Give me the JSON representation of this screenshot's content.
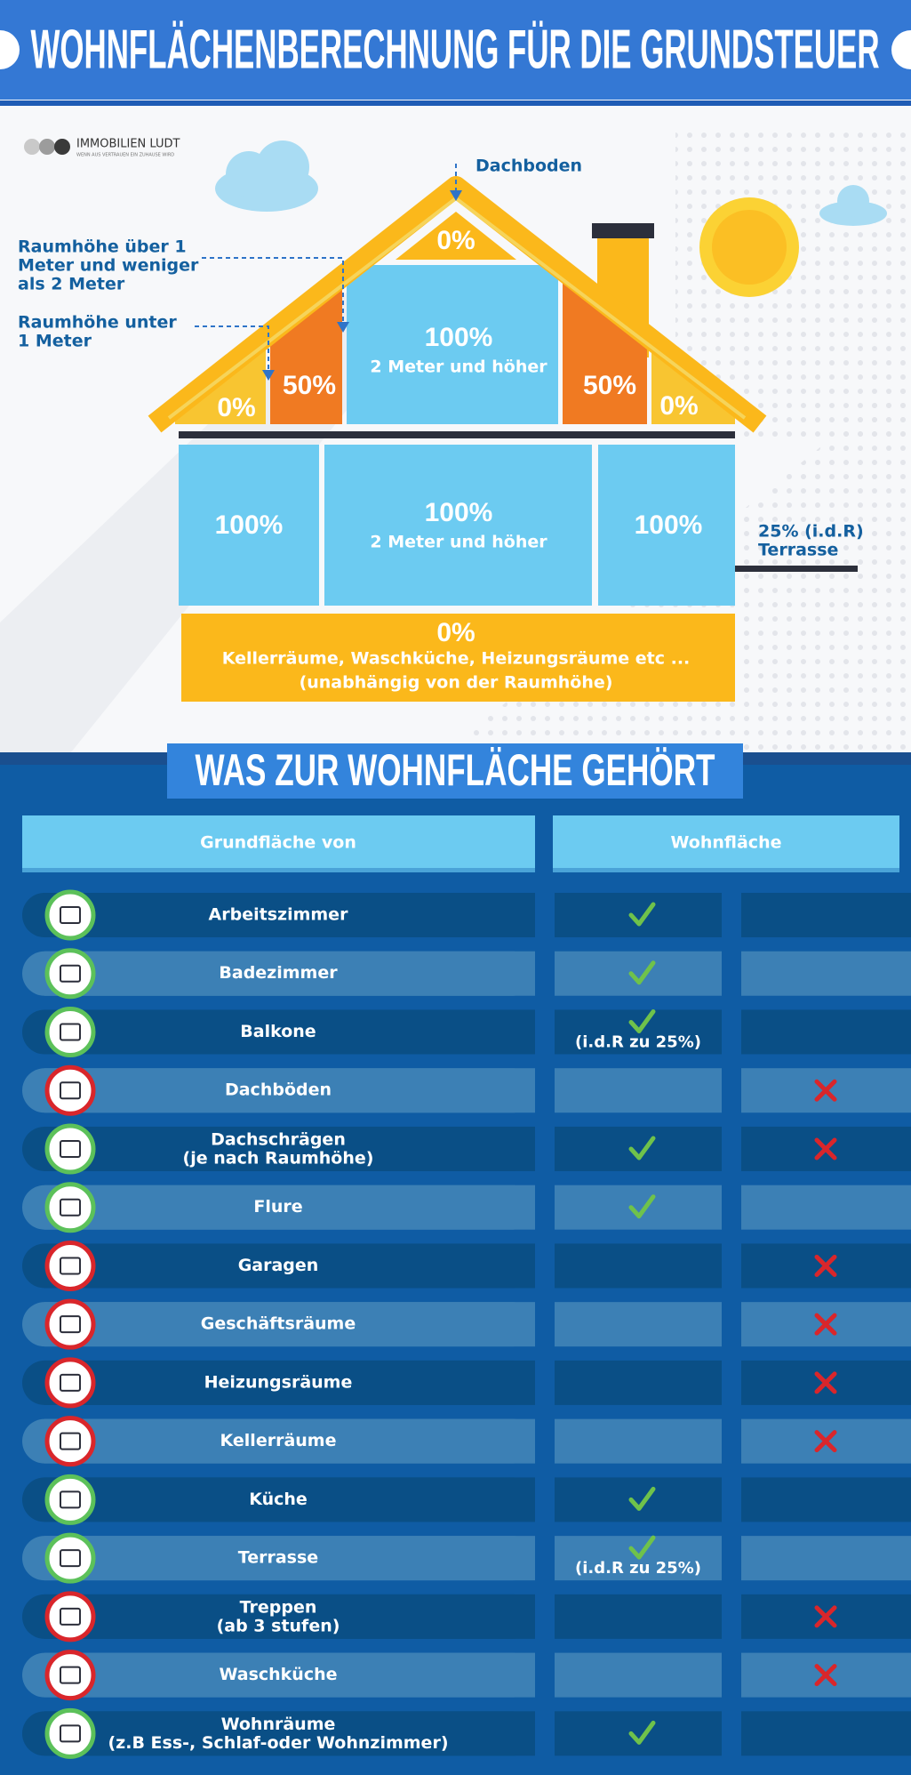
{
  "header": {
    "title": "WOHNFLÄCHENBERECHNUNG FÜR DIE GRUNDSTEUER"
  },
  "logo": {
    "name": "IMMOBILIEN LUDT",
    "tagline": "WENN AUS VERTRAUEN EIN ZUHAUSE WIRD"
  },
  "house": {
    "attic_label": "Dachboden",
    "note_between": [
      "Raumhöhe über 1",
      "Meter und weniger",
      "als 2 Meter"
    ],
    "note_below": [
      "Raumhöhe unter",
      "1 Meter"
    ],
    "attic_pct": "0%",
    "upper_floor": [
      {
        "pct": "0%"
      },
      {
        "pct": "50%"
      },
      {
        "pct": "100%",
        "note": "2 Meter und höher"
      },
      {
        "pct": "50%"
      },
      {
        "pct": "0%"
      }
    ],
    "ground_floor": [
      {
        "pct": "100%"
      },
      {
        "pct": "100%",
        "note": "2 Meter und höher"
      },
      {
        "pct": "100%"
      }
    ],
    "terrace": [
      "25% (i.d.R)",
      "Terrasse"
    ],
    "basement": {
      "pct": "0%",
      "lines": [
        "Kellerräume, Waschküche, Heizungsräume etc ...",
        "(unabhängig von der Raumhöhe)"
      ]
    }
  },
  "section": {
    "title": "WAS ZUR WOHNFLÄCHE GEHÖRT"
  },
  "table": {
    "headers": [
      "Grundfläche von",
      "Wohnfläche"
    ],
    "rows": [
      {
        "name": "Arbeitszimmer",
        "included": true,
        "excluded": false
      },
      {
        "name": "Badezimmer",
        "included": true,
        "excluded": false
      },
      {
        "name": "Balkone",
        "included": true,
        "excluded": false,
        "note": "(i.d.R zu 25%)"
      },
      {
        "name": "Dachböden",
        "included": false,
        "excluded": true
      },
      {
        "name": "Dachschrägen",
        "detail": "(je nach Raumhöhe)",
        "included": true,
        "excluded": true
      },
      {
        "name": "Flure",
        "included": true,
        "excluded": false
      },
      {
        "name": "Garagen",
        "included": false,
        "excluded": true
      },
      {
        "name": "Geschäftsräume",
        "included": false,
        "excluded": true
      },
      {
        "name": "Heizungsräume",
        "included": false,
        "excluded": true
      },
      {
        "name": "Kellerräume",
        "included": false,
        "excluded": true
      },
      {
        "name": "Küche",
        "included": true,
        "excluded": false
      },
      {
        "name": "Terrasse",
        "included": true,
        "excluded": false,
        "note": "(i.d.R zu 25%)"
      },
      {
        "name": "Treppen",
        "detail": "(ab 3 stufen)",
        "included": false,
        "excluded": true
      },
      {
        "name": "Waschküche",
        "included": false,
        "excluded": true
      },
      {
        "name": "Wohnräume",
        "detail": "(z.B Ess-, Schlaf-oder Wohnzimmer)",
        "included": true,
        "excluded": false
      }
    ]
  }
}
